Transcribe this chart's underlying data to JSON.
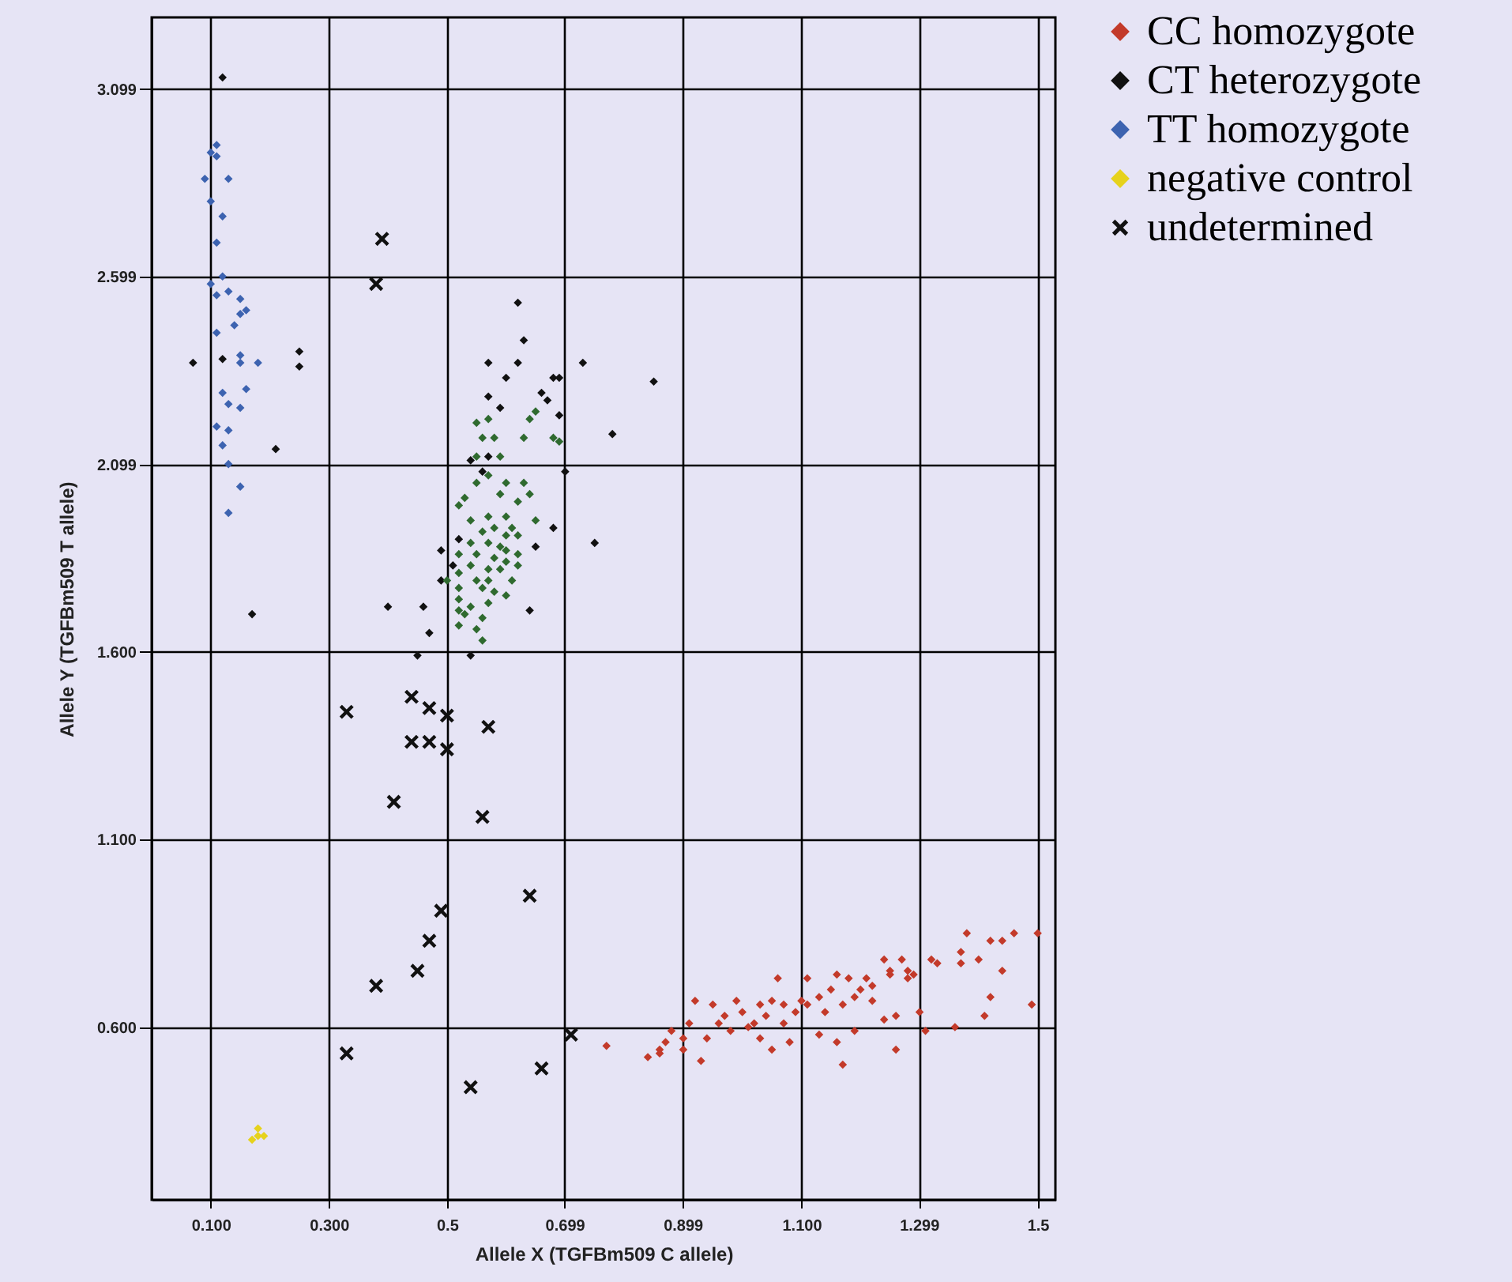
{
  "chart_data": {
    "type": "scatter",
    "xlabel": "Allele X (TGFBm509 C allele)",
    "ylabel": "Allele Y (TGFBm509 T allele)",
    "xlim": [
      0,
      1.53
    ],
    "ylim": [
      0.14,
      3.29
    ],
    "xticks": [
      {
        "value": 0.1,
        "label": "0.100"
      },
      {
        "value": 0.3,
        "label": "0.300"
      },
      {
        "value": 0.5,
        "label": "0.5"
      },
      0.699,
      0.899,
      {
        "value": 1.1,
        "label": "1.100"
      },
      1.299,
      {
        "value": 1.5,
        "label": "1.5"
      }
    ],
    "yticks": [
      {
        "value": 0.6,
        "label": "0.600"
      },
      {
        "value": 1.1,
        "label": "1.100"
      },
      {
        "value": 1.6,
        "label": "1.600"
      },
      2.099,
      2.599,
      3.099
    ],
    "grid": true,
    "legend": "top right",
    "marker": "diamond",
    "series": [
      {
        "name": "CC homozygote",
        "color": "#c33a2a",
        "x": [
          0.77,
          0.84,
          0.86,
          0.87,
          0.88,
          0.9,
          0.91,
          0.92,
          0.93,
          0.94,
          0.95,
          0.96,
          0.97,
          0.99,
          1.0,
          1.02,
          1.03,
          1.03,
          1.04,
          1.05,
          1.05,
          1.06,
          1.07,
          1.08,
          1.07,
          1.09,
          1.1,
          1.11,
          1.11,
          1.13,
          1.13,
          1.15,
          1.16,
          1.16,
          1.17,
          1.17,
          1.18,
          1.19,
          1.19,
          1.2,
          1.21,
          1.22,
          1.24,
          1.24,
          1.25,
          1.26,
          1.26,
          1.27,
          1.28,
          1.28,
          1.29,
          1.3,
          1.31,
          1.32,
          1.33,
          1.36,
          1.37,
          1.37,
          1.38,
          1.4,
          1.41,
          1.42,
          1.42,
          1.44,
          1.44,
          1.46,
          1.49,
          1.5,
          1.22,
          1.25,
          1.14,
          1.01,
          0.98,
          0.9,
          0.86
        ],
        "values": [
          0.55,
          0.52,
          0.54,
          0.56,
          0.59,
          0.54,
          0.61,
          0.67,
          0.51,
          0.57,
          0.66,
          0.61,
          0.63,
          0.67,
          0.64,
          0.61,
          0.57,
          0.66,
          0.63,
          0.54,
          0.67,
          0.73,
          0.61,
          0.56,
          0.66,
          0.64,
          0.67,
          0.73,
          0.66,
          0.58,
          0.68,
          0.7,
          0.74,
          0.56,
          0.5,
          0.66,
          0.73,
          0.68,
          0.59,
          0.7,
          0.73,
          0.71,
          0.78,
          0.62,
          0.75,
          0.54,
          0.63,
          0.78,
          0.73,
          0.75,
          0.74,
          0.64,
          0.59,
          0.78,
          0.77,
          0.6,
          0.8,
          0.77,
          0.85,
          0.78,
          0.63,
          0.68,
          0.83,
          0.83,
          0.75,
          0.85,
          0.66,
          0.85,
          0.67,
          0.74,
          0.64,
          0.6,
          0.59,
          0.57,
          0.53
        ]
      },
      {
        "name": "CT heterozygote",
        "color": "#111111",
        "x": [
          0.12,
          0.07,
          0.12,
          0.25,
          0.25,
          0.21,
          0.17,
          0.62,
          0.63,
          0.57,
          0.62,
          0.6,
          0.73,
          0.85,
          0.57,
          0.59,
          0.68,
          0.69,
          0.66,
          0.67,
          0.69,
          0.78,
          0.54,
          0.56,
          0.7,
          0.68,
          0.75,
          0.65,
          0.52,
          0.49,
          0.51,
          0.49,
          0.4,
          0.46,
          0.47,
          0.64,
          0.45,
          0.54,
          0.57
        ],
        "values": [
          3.13,
          2.37,
          2.38,
          2.4,
          2.36,
          2.14,
          1.7,
          2.53,
          2.43,
          2.37,
          2.37,
          2.33,
          2.37,
          2.32,
          2.28,
          2.25,
          2.33,
          2.33,
          2.29,
          2.27,
          2.23,
          2.18,
          2.11,
          2.08,
          2.08,
          1.93,
          1.89,
          1.88,
          1.9,
          1.87,
          1.83,
          1.79,
          1.72,
          1.72,
          1.65,
          1.71,
          1.59,
          1.59,
          2.12
        ]
      },
      {
        "color": "#2f6a2f",
        "x": [
          0.55,
          0.57,
          0.58,
          0.56,
          0.63,
          0.64,
          0.65,
          0.68,
          0.69,
          0.55,
          0.59,
          0.57,
          0.55,
          0.6,
          0.63,
          0.64,
          0.53,
          0.59,
          0.62,
          0.52,
          0.6,
          0.57,
          0.65,
          0.54,
          0.58,
          0.61,
          0.56,
          0.6,
          0.62,
          0.54,
          0.57,
          0.59,
          0.6,
          0.62,
          0.52,
          0.55,
          0.58,
          0.6,
          0.54,
          0.57,
          0.59,
          0.62,
          0.52,
          0.55,
          0.57,
          0.61,
          0.5,
          0.52,
          0.56,
          0.58,
          0.6,
          0.52,
          0.54,
          0.57,
          0.52,
          0.53,
          0.56,
          0.52,
          0.55,
          0.56
        ],
        "values": [
          2.21,
          2.22,
          2.17,
          2.17,
          2.17,
          2.22,
          2.24,
          2.17,
          2.16,
          2.12,
          2.12,
          2.07,
          2.05,
          2.05,
          2.05,
          2.02,
          2.01,
          2.02,
          2.0,
          1.99,
          1.96,
          1.96,
          1.95,
          1.95,
          1.93,
          1.93,
          1.92,
          1.91,
          1.91,
          1.89,
          1.89,
          1.88,
          1.87,
          1.86,
          1.86,
          1.86,
          1.85,
          1.84,
          1.83,
          1.82,
          1.82,
          1.83,
          1.81,
          1.79,
          1.79,
          1.79,
          1.79,
          1.77,
          1.77,
          1.76,
          1.75,
          1.74,
          1.72,
          1.73,
          1.71,
          1.7,
          1.69,
          1.67,
          1.66,
          1.63
        ]
      },
      {
        "name": "TT homozygote",
        "color": "#3d63b0",
        "x": [
          0.1,
          0.11,
          0.11,
          0.09,
          0.13,
          0.1,
          0.12,
          0.11,
          0.12,
          0.1,
          0.11,
          0.13,
          0.15,
          0.14,
          0.11,
          0.15,
          0.15,
          0.18,
          0.12,
          0.16,
          0.13,
          0.15,
          0.11,
          0.13,
          0.12,
          0.13,
          0.15,
          0.13,
          0.16,
          0.15
        ],
        "values": [
          2.93,
          2.92,
          2.95,
          2.86,
          2.86,
          2.8,
          2.76,
          2.69,
          2.6,
          2.58,
          2.55,
          2.56,
          2.54,
          2.47,
          2.45,
          2.39,
          2.37,
          2.37,
          2.29,
          2.3,
          2.26,
          2.25,
          2.2,
          2.19,
          2.15,
          2.1,
          2.04,
          1.97,
          2.51,
          2.5
        ]
      },
      {
        "name": "negative control",
        "color": "#e6d21c",
        "x": [
          0.18,
          0.18,
          0.19,
          0.17
        ],
        "values": [
          0.33,
          0.31,
          0.31,
          0.3
        ]
      },
      {
        "name": "undetermined",
        "color": "#111111",
        "marker": "cross",
        "x": [
          0.39,
          0.38,
          0.33,
          0.44,
          0.47,
          0.5,
          0.57,
          0.44,
          0.47,
          0.5,
          0.41,
          0.56,
          0.64,
          0.49,
          0.47,
          0.45,
          0.38,
          0.71,
          0.33,
          0.66,
          0.54
        ],
        "values": [
          2.7,
          2.58,
          1.44,
          1.48,
          1.45,
          1.43,
          1.4,
          1.36,
          1.36,
          1.34,
          1.2,
          1.16,
          0.95,
          0.91,
          0.83,
          0.75,
          0.71,
          0.58,
          0.53,
          0.49,
          0.44
        ]
      }
    ]
  }
}
